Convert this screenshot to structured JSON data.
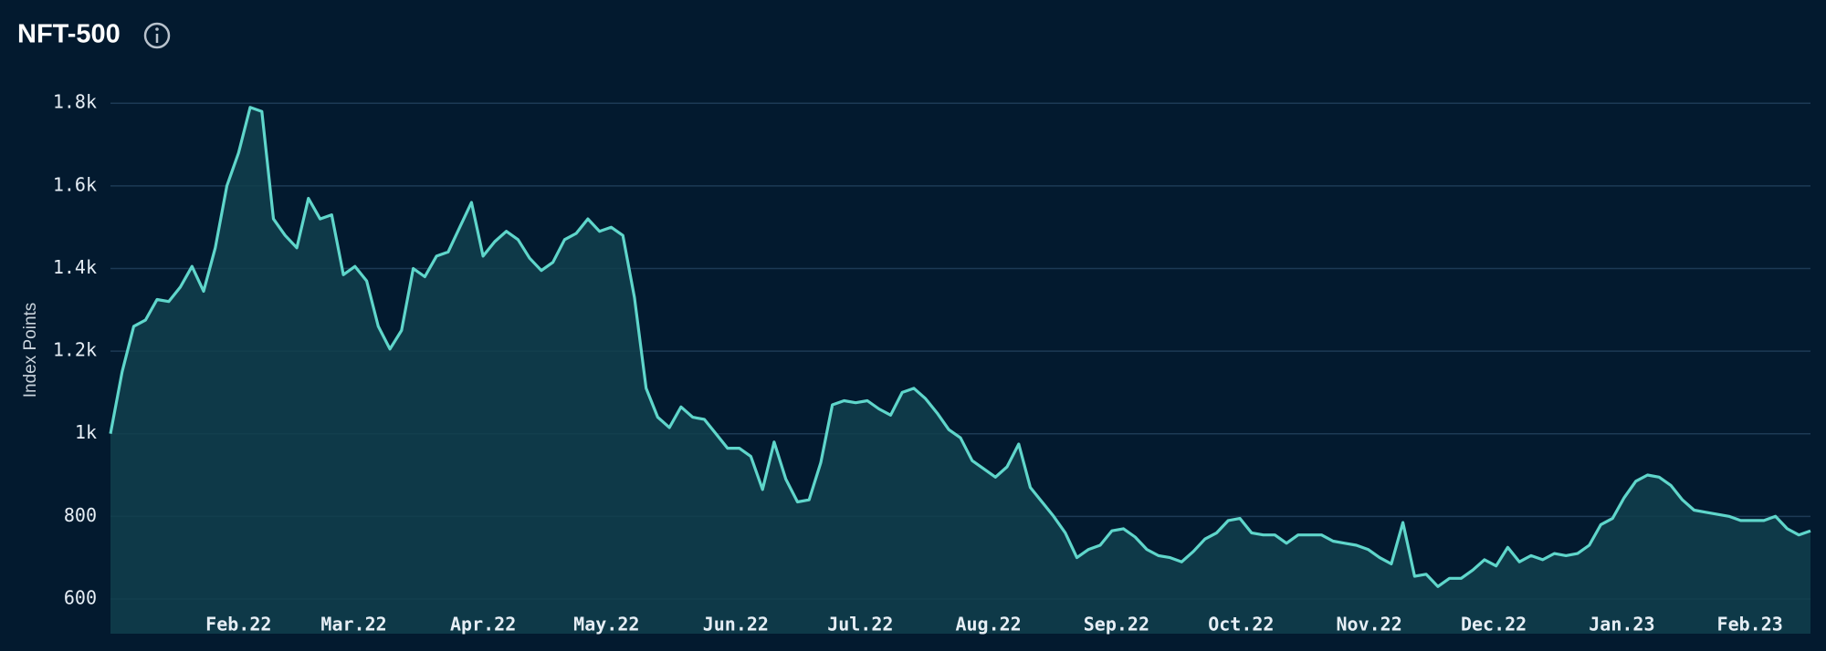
{
  "chart_data": {
    "type": "area",
    "title": "NFT-500",
    "y_axis_label": "Index Points",
    "color": "#5fd6cb",
    "fill": "#10404c",
    "grid": true,
    "values": [
      1000,
      1150,
      1260,
      1275,
      1325,
      1320,
      1355,
      1405,
      1345,
      1450,
      1600,
      1680,
      1790,
      1780,
      1520,
      1480,
      1450,
      1570,
      1520,
      1530,
      1385,
      1405,
      1370,
      1260,
      1205,
      1250,
      1400,
      1380,
      1430,
      1440,
      1500,
      1560,
      1430,
      1465,
      1490,
      1470,
      1425,
      1395,
      1415,
      1470,
      1485,
      1520,
      1490,
      1500,
      1480,
      1330,
      1110,
      1040,
      1015,
      1065,
      1040,
      1035,
      1000,
      965,
      965,
      945,
      865,
      980,
      890,
      835,
      840,
      930,
      1070,
      1080,
      1075,
      1080,
      1060,
      1045,
      1100,
      1110,
      1085,
      1050,
      1010,
      990,
      935,
      915,
      895,
      920,
      975,
      870,
      835,
      800,
      760,
      700,
      720,
      730,
      765,
      770,
      750,
      720,
      705,
      700,
      690,
      715,
      745,
      760,
      790,
      795,
      760,
      755,
      755,
      735,
      755,
      755,
      755,
      740,
      735,
      730,
      720,
      700,
      685,
      785,
      655,
      660,
      630,
      650,
      650,
      670,
      695,
      680,
      725,
      690,
      705,
      695,
      710,
      705,
      710,
      730,
      780,
      795,
      845,
      885,
      900,
      895,
      875,
      840,
      815,
      810,
      805,
      800,
      790,
      790,
      790,
      800,
      770,
      755,
      765
    ],
    "xlim": [
      0,
      146
    ],
    "xticks": [
      {
        "value": 11,
        "label": "Feb.22"
      },
      {
        "value": 20.9,
        "label": "Mar.22"
      },
      {
        "value": 32,
        "label": "Apr.22"
      },
      {
        "value": 42.6,
        "label": "May.22"
      },
      {
        "value": 53.7,
        "label": "Jun.22"
      },
      {
        "value": 64.4,
        "label": "Jul.22"
      },
      {
        "value": 75.4,
        "label": "Aug.22"
      },
      {
        "value": 86.4,
        "label": "Sep.22"
      },
      {
        "value": 97.1,
        "label": "Oct.22"
      },
      {
        "value": 108.1,
        "label": "Nov.22"
      },
      {
        "value": 118.8,
        "label": "Dec.22"
      },
      {
        "value": 129.8,
        "label": "Jan.23"
      },
      {
        "value": 140.8,
        "label": "Feb.23"
      }
    ],
    "ylim": [
      516,
      1880
    ],
    "yticks": [
      600,
      800,
      {
        "value": 1000,
        "label": "1k"
      },
      {
        "value": 1200,
        "label": "1.2k"
      },
      {
        "value": 1400,
        "label": "1.4k"
      },
      {
        "value": 1600,
        "label": "1.6k"
      },
      {
        "value": 1800,
        "label": "1.8k"
      }
    ]
  }
}
